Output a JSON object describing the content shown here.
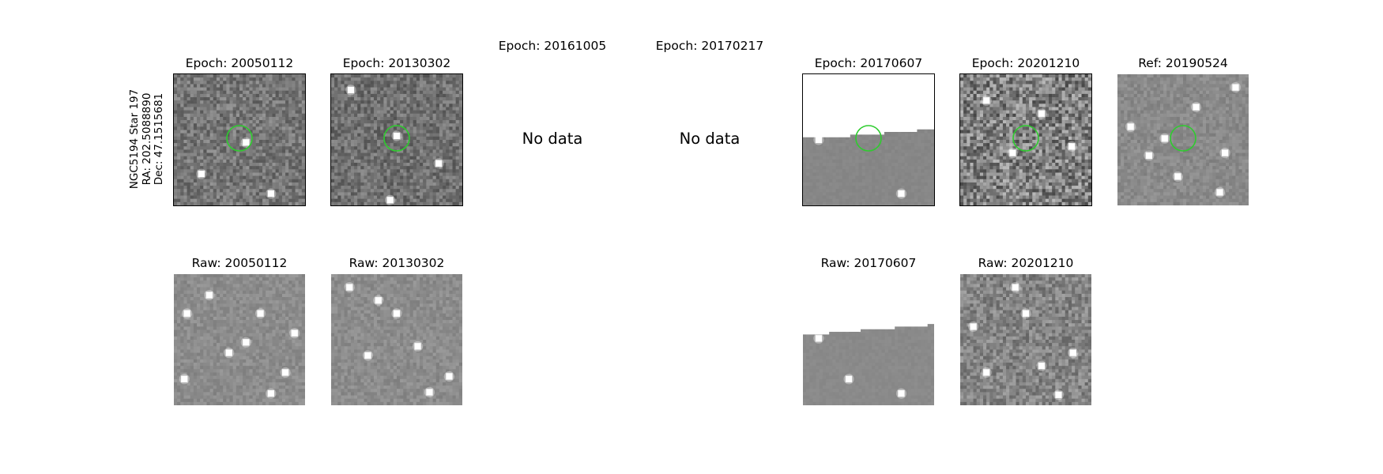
{
  "figure": {
    "star_label": {
      "name": "NGC5194 Star 197",
      "ra": "RA: 202.5088890",
      "dec": "Dec: 47.1515681"
    },
    "rows": {
      "epoch": [
        {
          "title": "Epoch: 20050112",
          "status": "image",
          "noise": "med",
          "base": 118,
          "mask_profile": null,
          "marker": "green-circle",
          "bright_points": [
            [
              0.55,
              0.52
            ],
            [
              0.74,
              0.91
            ],
            [
              0.21,
              0.76
            ]
          ]
        },
        {
          "title": "Epoch: 20130302",
          "status": "image",
          "noise": "med",
          "base": 112,
          "mask_profile": null,
          "marker": "green-circle",
          "bright_points": [
            [
              0.5,
              0.47
            ],
            [
              0.15,
              0.12
            ],
            [
              0.45,
              0.96
            ],
            [
              0.82,
              0.68
            ]
          ]
        },
        {
          "title": "Epoch: 20161005",
          "status": "nodata",
          "message": "No data"
        },
        {
          "title": "Epoch: 20170217",
          "status": "nodata",
          "message": "No data"
        },
        {
          "title": "Epoch: 20170607",
          "status": "image",
          "noise": "flat",
          "base": 135,
          "mask_profile": [
            [
              0,
              0.48
            ],
            [
              0.36,
              0.48
            ],
            [
              0.36,
              0.46
            ],
            [
              0.62,
              0.46
            ],
            [
              0.62,
              0.44
            ],
            [
              0.87,
              0.44
            ],
            [
              0.87,
              0.42
            ],
            [
              1,
              0.42
            ]
          ],
          "marker": "green-circle",
          "bright_points": [
            [
              0.12,
              0.5
            ],
            [
              0.75,
              0.91
            ]
          ]
        },
        {
          "title": "Epoch: 20201210",
          "status": "image",
          "noise": "high",
          "base": 128,
          "mask_profile": null,
          "marker": "green-circle",
          "bright_points": [
            [
              0.4,
              0.6
            ],
            [
              0.62,
              0.3
            ],
            [
              0.85,
              0.55
            ],
            [
              0.2,
              0.2
            ]
          ]
        },
        {
          "title": "Ref: 20190524",
          "status": "image",
          "noise": "low",
          "base": 138,
          "mask_profile": null,
          "marker": "green-circle",
          "bright_points": [
            [
              0.1,
              0.4
            ],
            [
              0.78,
              0.9
            ],
            [
              0.36,
              0.49
            ],
            [
              0.9,
              0.1
            ],
            [
              0.24,
              0.62
            ],
            [
              0.6,
              0.25
            ],
            [
              0.46,
              0.78
            ],
            [
              0.82,
              0.6
            ]
          ]
        }
      ],
      "raw": [
        {
          "title": "Raw: 20050112",
          "status": "image",
          "noise": "low",
          "base": 140,
          "mask_profile": null,
          "marker": null,
          "bright_points": [
            [
              0.74,
              0.91
            ],
            [
              0.1,
              0.3
            ],
            [
              0.55,
              0.52
            ],
            [
              0.27,
              0.16
            ],
            [
              0.66,
              0.3
            ],
            [
              0.85,
              0.75
            ],
            [
              0.08,
              0.8
            ],
            [
              0.42,
              0.6
            ],
            [
              0.92,
              0.45
            ]
          ]
        },
        {
          "title": "Raw: 20130302",
          "status": "image",
          "noise": "low",
          "base": 140,
          "mask_profile": null,
          "marker": null,
          "bright_points": [
            [
              0.75,
              0.9
            ],
            [
              0.14,
              0.1
            ],
            [
              0.5,
              0.3
            ],
            [
              0.66,
              0.55
            ],
            [
              0.28,
              0.62
            ],
            [
              0.9,
              0.78
            ],
            [
              0.36,
              0.2
            ]
          ]
        },
        {
          "title": "",
          "status": "empty"
        },
        {
          "title": "",
          "status": "empty"
        },
        {
          "title": "Raw: 20170607",
          "status": "image",
          "noise": "flat",
          "base": 138,
          "mask_profile": [
            [
              0,
              0.46
            ],
            [
              0.2,
              0.46
            ],
            [
              0.2,
              0.44
            ],
            [
              0.44,
              0.44
            ],
            [
              0.44,
              0.42
            ],
            [
              0.7,
              0.42
            ],
            [
              0.7,
              0.4
            ],
            [
              0.95,
              0.4
            ],
            [
              0.95,
              0.38
            ],
            [
              1,
              0.38
            ]
          ],
          "marker": null,
          "bright_points": [
            [
              0.12,
              0.49
            ],
            [
              0.75,
              0.91
            ],
            [
              0.35,
              0.8
            ]
          ]
        },
        {
          "title": "Raw: 20201210",
          "status": "image",
          "noise": "med",
          "base": 132,
          "mask_profile": null,
          "marker": null,
          "bright_points": [
            [
              0.75,
              0.92
            ],
            [
              0.1,
              0.4
            ],
            [
              0.5,
              0.3
            ],
            [
              0.2,
              0.75
            ],
            [
              0.86,
              0.6
            ],
            [
              0.42,
              0.1
            ],
            [
              0.62,
              0.7
            ]
          ]
        },
        {
          "title": "",
          "status": "empty"
        }
      ]
    },
    "colors": {
      "marker": "#2ecc2e",
      "masked_bg": "#ffffff",
      "text": "#000000"
    }
  }
}
